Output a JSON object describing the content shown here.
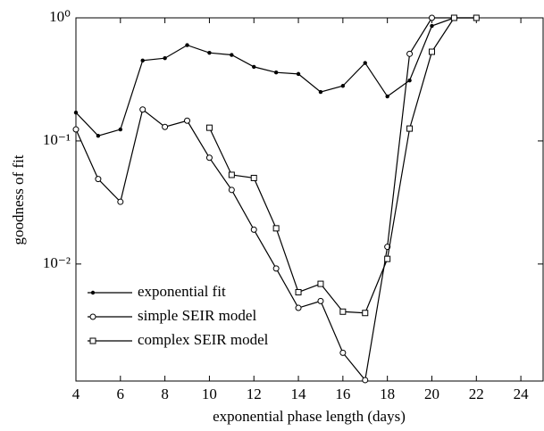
{
  "chart_data": {
    "type": "line",
    "xlabel": "exponential phase length (days)",
    "ylabel": "goodness of fit",
    "x": [
      4,
      5,
      6,
      7,
      8,
      9,
      10,
      11,
      12,
      13,
      14,
      15,
      16,
      17,
      18,
      19,
      20,
      21,
      22
    ],
    "xlim": [
      4,
      25
    ],
    "xticks": [
      4,
      6,
      8,
      10,
      12,
      14,
      16,
      18,
      20,
      22,
      24
    ],
    "ylim": [
      0.00112,
      1
    ],
    "yscale": "log",
    "yticks": [
      {
        "value": 1,
        "label": "10⁰"
      },
      {
        "value": 0.1,
        "label": "10⁻¹"
      },
      {
        "value": 0.01,
        "label": "10⁻²"
      }
    ],
    "legend": "lower left",
    "series": [
      {
        "name": "exponential fit",
        "color": "#000000",
        "marker": "dot",
        "values": [
          0.17,
          0.11,
          0.124,
          0.45,
          0.47,
          0.6,
          0.52,
          0.5,
          0.4,
          0.36,
          0.35,
          0.25,
          0.28,
          0.43,
          0.23,
          0.31,
          0.86,
          1,
          1
        ]
      },
      {
        "name": "simple SEIR model",
        "color": "#000000",
        "marker": "circle",
        "values": [
          0.124,
          0.049,
          0.032,
          0.18,
          0.13,
          0.146,
          0.073,
          0.04,
          0.019,
          0.0092,
          0.0044,
          0.005,
          0.0019,
          0.00114,
          0.0138,
          0.51,
          1,
          1,
          null
        ]
      },
      {
        "name": "complex SEIR model",
        "color": "#000000",
        "marker": "square",
        "values": [
          null,
          null,
          null,
          null,
          null,
          null,
          0.128,
          0.053,
          0.05,
          0.0195,
          0.0059,
          0.0069,
          0.0041,
          0.004,
          0.011,
          0.126,
          0.53,
          1,
          1
        ]
      }
    ]
  }
}
